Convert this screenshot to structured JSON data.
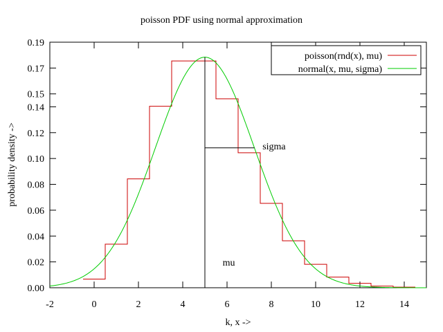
{
  "chart_data": {
    "type": "line",
    "title": "poisson PDF using normal approximation",
    "xlabel": "k, x ->",
    "ylabel": "probability density ->",
    "xlim": [
      -2,
      15
    ],
    "ylim": [
      0,
      0.19
    ],
    "xticks": [
      "-2",
      "0",
      "2",
      "4",
      "6",
      "8",
      "10",
      "12",
      "14"
    ],
    "xtick_values": [
      -2,
      0,
      2,
      4,
      6,
      8,
      10,
      12,
      14
    ],
    "yticks": [
      "0.00",
      "0.02",
      "0.04",
      "0.06",
      "0.08",
      "0.10",
      "0.12",
      "0.14",
      "0.15",
      "0.17",
      "0.19"
    ],
    "ytick_values": [
      0.0,
      0.02,
      0.04,
      0.06,
      0.08,
      0.1,
      0.12,
      0.14,
      0.15,
      0.17,
      0.19
    ],
    "legend_position": "top-right",
    "grid": false,
    "mu": 5,
    "sigma": 2.236,
    "series": [
      {
        "name": "poisson(rnd(x), mu)",
        "style": "steps",
        "color": "#cc0000",
        "k": [
          0,
          1,
          2,
          3,
          4,
          5,
          6,
          7,
          8,
          9,
          10,
          11,
          12,
          13,
          14
        ],
        "values": [
          0.0067,
          0.0337,
          0.0842,
          0.1404,
          0.1755,
          0.1755,
          0.1462,
          0.1044,
          0.0653,
          0.0363,
          0.0181,
          0.0082,
          0.0034,
          0.0013,
          0.0005
        ]
      },
      {
        "name": "normal(x, mu, sigma)",
        "style": "line",
        "color": "#00cc00",
        "function": "normal",
        "mu": 5,
        "sigma": 2.236
      }
    ],
    "annotations": [
      {
        "text": "mu",
        "x": 5.8,
        "y": 0.017
      },
      {
        "text": "sigma",
        "x": 7.6,
        "y": 0.107
      }
    ]
  }
}
